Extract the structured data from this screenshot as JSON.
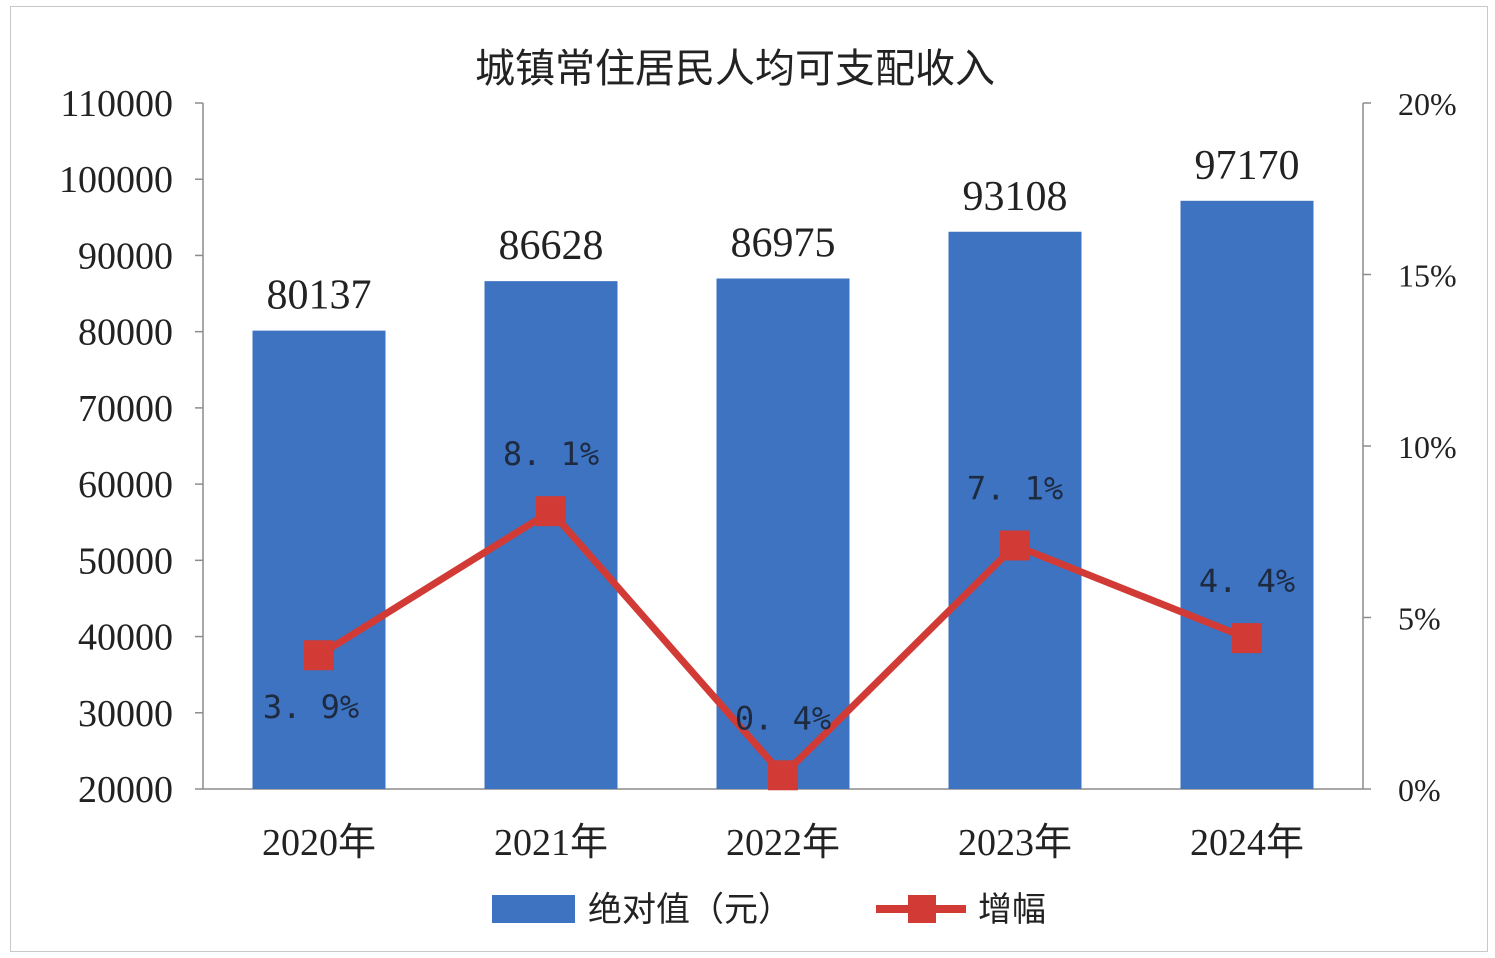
{
  "chart_data": {
    "type": "bar+line",
    "title": "城镇常住居民人均可支配收入",
    "categories": [
      "2020年",
      "2021年",
      "2022年",
      "2023年",
      "2024年"
    ],
    "series": [
      {
        "name": "绝对值（元）",
        "type": "bar",
        "axis": "left",
        "values": [
          80137,
          86628,
          86975,
          93108,
          97170
        ],
        "labels": [
          "80137",
          "86628",
          "86975",
          "93108",
          "97170"
        ],
        "color": "#3d73c0"
      },
      {
        "name": "增幅",
        "type": "line",
        "axis": "right",
        "values": [
          3.9,
          8.1,
          0.4,
          7.1,
          4.4
        ],
        "labels": [
          "3. 9%",
          "8. 1%",
          "0. 4%",
          "7. 1%",
          "4. 4%"
        ],
        "color": "#d23b35"
      }
    ],
    "y_left": {
      "ylim": [
        20000,
        110000
      ],
      "ticks": [
        "20000",
        "30000",
        "40000",
        "50000",
        "60000",
        "70000",
        "80000",
        "90000",
        "100000",
        "110000"
      ]
    },
    "y_right": {
      "ylim": [
        0,
        20
      ],
      "ticks": [
        "0%",
        "5%",
        "10%",
        "15%",
        "20%"
      ]
    },
    "grid": false,
    "legend_position": "bottom"
  }
}
